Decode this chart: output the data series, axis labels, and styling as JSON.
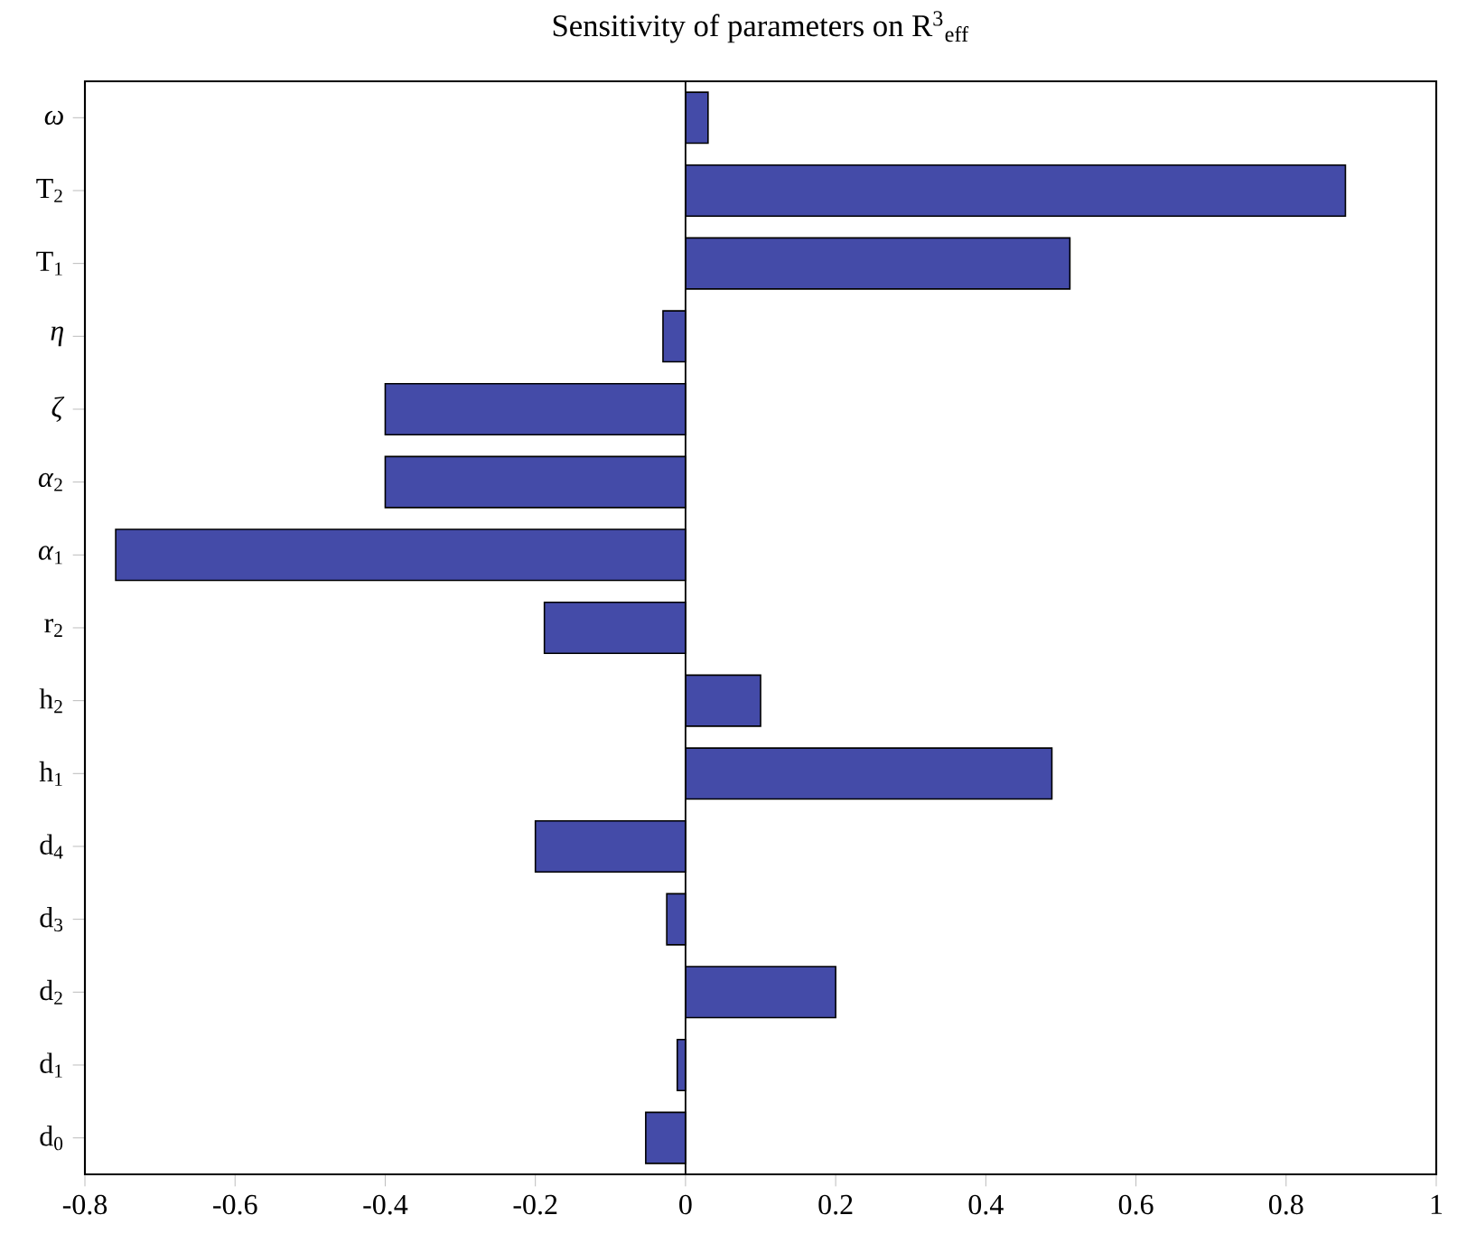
{
  "chart_data": {
    "type": "bar",
    "orientation": "horizontal",
    "title": "Sensitivity of parameters on R$^{3}$$_{eff}$",
    "categories": [
      "*ω*",
      "T$_{2}$",
      "T$_{1}$",
      "*η*",
      "*ζ*",
      "*α*$_{2}$",
      "*α*$_{1}$",
      "r$_{2}$",
      "h$_{2}$",
      "h$_{1}$",
      "d$_{4}$",
      "d$_{3}$",
      "d$_{2}$",
      "d$_{1}$",
      "d$_{0}$"
    ],
    "values": [
      0.03,
      0.879,
      0.512,
      -0.03,
      -0.4,
      -0.4,
      -0.759,
      -0.188,
      0.1,
      0.488,
      -0.2,
      -0.025,
      0.2,
      -0.011,
      -0.053
    ],
    "color": "#444ba8",
    "xlim": [
      -0.8,
      1
    ],
    "xticks": [
      -0.8,
      -0.6,
      -0.4,
      -0.2,
      0,
      0.2,
      0.4,
      0.6,
      0.8,
      1
    ],
    "ref_lines": [
      {
        "axis": "x",
        "value": 0
      }
    ]
  }
}
